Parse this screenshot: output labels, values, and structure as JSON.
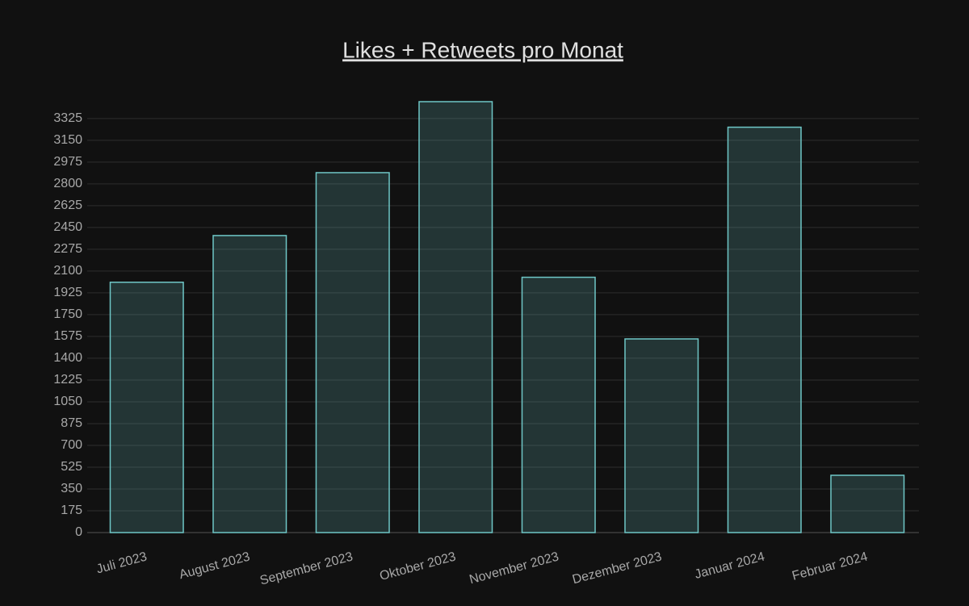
{
  "chart_data": {
    "type": "bar",
    "title": "Likes + Retweets pro Monat",
    "categories": [
      "Juli 2023",
      "August 2023",
      "September 2023",
      "Oktober 2023",
      "November 2023",
      "Dezember 2023",
      "Januar 2024",
      "Februar 2024"
    ],
    "values": [
      2010,
      2385,
      2890,
      3460,
      2050,
      1555,
      3255,
      460
    ],
    "color": "#6fc7c7",
    "ylim": [
      0,
      3460
    ],
    "yticks": [
      0,
      175,
      350,
      525,
      700,
      875,
      1050,
      1225,
      1400,
      1575,
      1750,
      1925,
      2100,
      2275,
      2450,
      2625,
      2800,
      2975,
      3150,
      3325
    ],
    "grid": true
  }
}
